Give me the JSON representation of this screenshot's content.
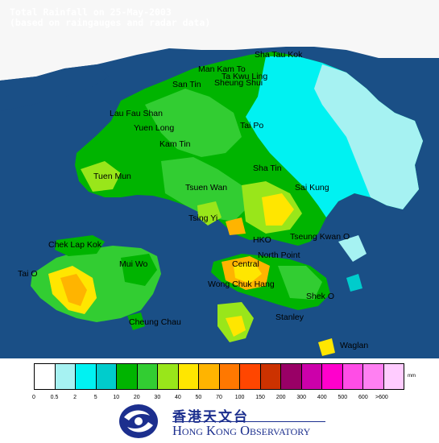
{
  "title": {
    "line1": "Total Rainfall on 25-May-2003",
    "line2": "(based on raingauges and radar data)"
  },
  "places": [
    {
      "key": "sha-tau-kok",
      "label": "Sha Tau Kok"
    },
    {
      "key": "man-kam-to",
      "label": "Man Kam To"
    },
    {
      "key": "ta-kwu-ling",
      "label": "Ta Kwu Ling"
    },
    {
      "key": "san-tin",
      "label": "San Tin"
    },
    {
      "key": "sheung-shui",
      "label": "Sheung Shui"
    },
    {
      "key": "lau-fau-shan",
      "label": "Lau Fau Shan"
    },
    {
      "key": "yuen-long",
      "label": "Yuen Long"
    },
    {
      "key": "tai-po",
      "label": "Tai Po"
    },
    {
      "key": "kam-tin",
      "label": "Kam Tin"
    },
    {
      "key": "sha-tin",
      "label": "Sha Tin"
    },
    {
      "key": "tuen-mun",
      "label": "Tuen Mun"
    },
    {
      "key": "tsuen-wan",
      "label": "Tsuen Wan"
    },
    {
      "key": "sai-kung",
      "label": "Sai Kung"
    },
    {
      "key": "tsing-yi",
      "label": "Tsing Yi"
    },
    {
      "key": "chek-lap-kok",
      "label": "Chek Lap Kok"
    },
    {
      "key": "hko",
      "label": "HKO"
    },
    {
      "key": "tseung-kwan-o",
      "label": "Tseung Kwan O"
    },
    {
      "key": "mui-wo",
      "label": "Mui Wo"
    },
    {
      "key": "north-point",
      "label": "North Point"
    },
    {
      "key": "central",
      "label": "Central"
    },
    {
      "key": "tai-o",
      "label": "Tai O"
    },
    {
      "key": "wong-chuk-hang",
      "label": "Wong Chuk Hang"
    },
    {
      "key": "shek-o",
      "label": "Shek O"
    },
    {
      "key": "stanley",
      "label": "Stanley"
    },
    {
      "key": "cheung-chau",
      "label": "Cheung Chau"
    },
    {
      "key": "waglan",
      "label": "Waglan"
    }
  ],
  "legend": {
    "unit": "mm",
    "colors": [
      "#ffffff",
      "#a6f2f2",
      "#00f2f2",
      "#00cccc",
      "#00b400",
      "#32cd32",
      "#99e61a",
      "#ffe600",
      "#ffb400",
      "#ff7800",
      "#ff4600",
      "#cc3200",
      "#990066",
      "#cc00aa",
      "#ff00cc",
      "#ff4de6",
      "#ff80f2",
      "#ffccff"
    ],
    "ticks": [
      "0",
      "0.5",
      "2",
      "5",
      "10",
      "20",
      "30",
      "40",
      "50",
      "70",
      "100",
      "150",
      "200",
      "300",
      "400",
      "500",
      "600",
      ">600"
    ]
  },
  "logo": {
    "chinese": "香港天文台",
    "english": "Hong Kong Observatory"
  }
}
